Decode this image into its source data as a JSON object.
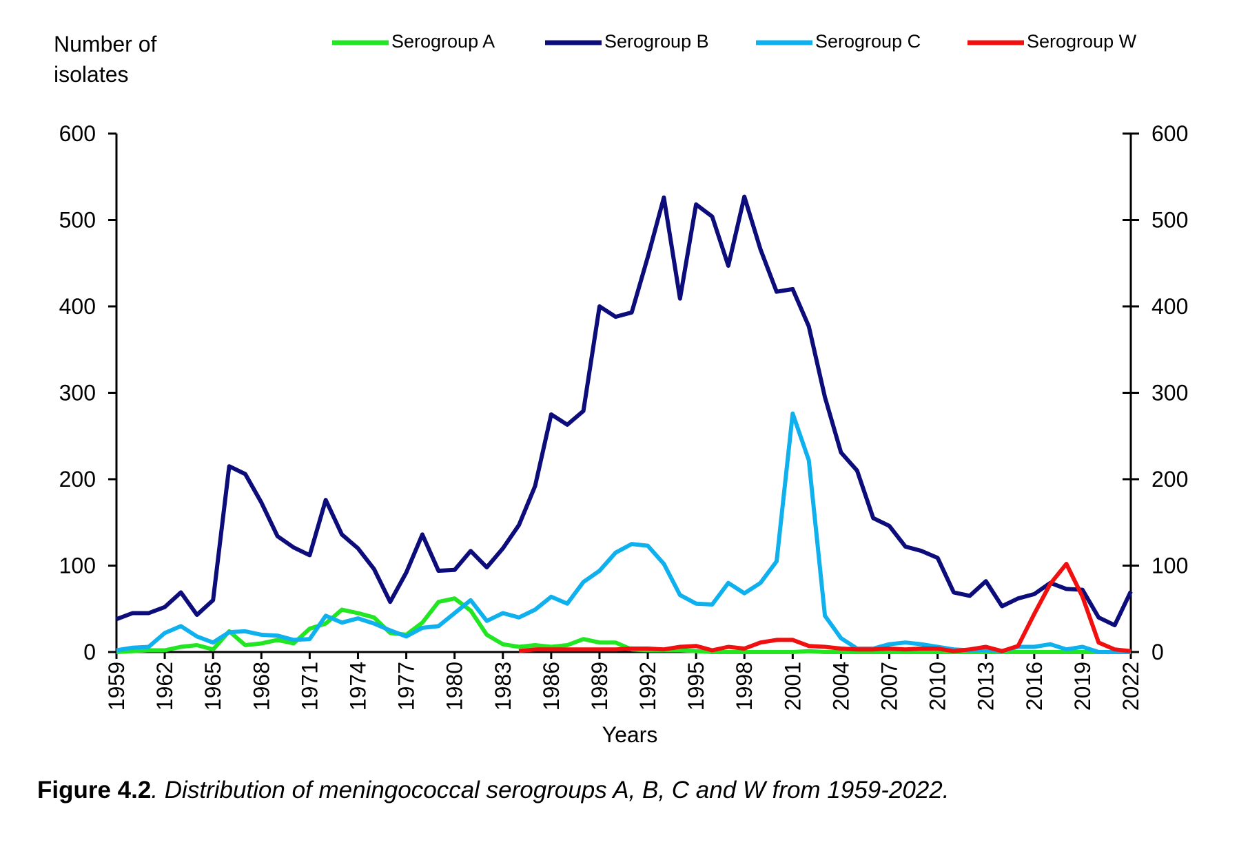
{
  "chart_data": {
    "type": "line",
    "ylabel": "Number of isolates",
    "xlabel": "Years",
    "caption_label": "Figure 4.2",
    "caption_text": ". Distribution of meningococcal serogroups A, B, C and W from 1959-2022.",
    "x": [
      1959,
      1960,
      1961,
      1962,
      1963,
      1964,
      1965,
      1966,
      1967,
      1968,
      1969,
      1970,
      1971,
      1972,
      1973,
      1974,
      1975,
      1976,
      1977,
      1978,
      1979,
      1980,
      1981,
      1982,
      1983,
      1984,
      1985,
      1986,
      1987,
      1988,
      1989,
      1990,
      1991,
      1992,
      1993,
      1994,
      1995,
      1996,
      1997,
      1998,
      1999,
      2000,
      2001,
      2002,
      2003,
      2004,
      2005,
      2006,
      2007,
      2008,
      2009,
      2010,
      2011,
      2012,
      2013,
      2014,
      2015,
      2016,
      2017,
      2018,
      2019,
      2020,
      2021,
      2022
    ],
    "xlim": [
      1959,
      2022
    ],
    "xticks": [
      1959,
      1962,
      1965,
      1968,
      1971,
      1974,
      1977,
      1980,
      1983,
      1986,
      1989,
      1992,
      1995,
      1998,
      2001,
      2004,
      2007,
      2010,
      2013,
      2016,
      2019,
      2022
    ],
    "ylim": [
      0,
      600
    ],
    "yticks": [
      0,
      100,
      200,
      300,
      400,
      500,
      600
    ],
    "y2lim": [
      0,
      600
    ],
    "y2ticks": [
      0,
      100,
      200,
      300,
      400,
      500,
      600
    ],
    "series": [
      {
        "name": "Serogroup A",
        "color": "#22e622",
        "values": [
          0,
          1,
          2,
          2,
          6,
          8,
          3,
          24,
          8,
          10,
          14,
          10,
          27,
          33,
          49,
          45,
          40,
          22,
          20,
          34,
          58,
          62,
          48,
          20,
          9,
          6,
          8,
          6,
          8,
          15,
          11,
          11,
          3,
          2,
          2,
          2,
          1,
          0,
          0,
          0,
          0,
          0,
          0,
          1,
          0,
          0,
          0,
          0,
          0,
          0,
          0,
          0,
          0,
          0,
          0,
          0,
          0,
          0,
          0,
          0,
          0,
          0,
          0,
          0
        ]
      },
      {
        "name": "Serogroup B",
        "color": "#0c0c7a",
        "values": [
          38,
          45,
          45,
          52,
          69,
          43,
          60,
          215,
          206,
          173,
          134,
          121,
          112,
          176,
          136,
          120,
          96,
          58,
          92,
          136,
          94,
          95,
          117,
          98,
          120,
          147,
          192,
          275,
          263,
          279,
          400,
          388,
          393,
          457,
          526,
          409,
          518,
          504,
          447,
          527,
          466,
          417,
          420,
          377,
          295,
          231,
          210,
          155,
          146,
          122,
          117,
          109,
          69,
          65,
          82,
          53,
          62,
          67,
          80,
          73,
          72,
          40,
          31,
          70
        ]
      },
      {
        "name": "Serogroup C",
        "color": "#0fb0ee",
        "values": [
          2,
          5,
          6,
          22,
          30,
          18,
          11,
          23,
          24,
          20,
          19,
          14,
          15,
          42,
          34,
          39,
          33,
          25,
          18,
          28,
          30,
          45,
          60,
          36,
          45,
          40,
          49,
          64,
          56,
          81,
          94,
          115,
          125,
          123,
          102,
          66,
          56,
          55,
          80,
          68,
          80,
          105,
          276,
          222,
          42,
          16,
          4,
          4,
          9,
          11,
          9,
          6,
          3,
          2,
          2,
          1,
          6,
          6,
          9,
          3,
          6,
          0,
          0,
          0
        ]
      },
      {
        "name": "Serogroup W",
        "color": "#f01010",
        "values": [
          null,
          null,
          null,
          null,
          null,
          null,
          null,
          null,
          null,
          null,
          null,
          null,
          null,
          null,
          null,
          null,
          null,
          null,
          null,
          null,
          null,
          null,
          null,
          null,
          null,
          1,
          3,
          3,
          3,
          3,
          3,
          3,
          4,
          4,
          3,
          6,
          7,
          2,
          6,
          4,
          11,
          14,
          14,
          7,
          6,
          4,
          3,
          3,
          4,
          3,
          4,
          4,
          1,
          3,
          6,
          1,
          7,
          44,
          79,
          102,
          64,
          11,
          3,
          1
        ]
      }
    ]
  }
}
